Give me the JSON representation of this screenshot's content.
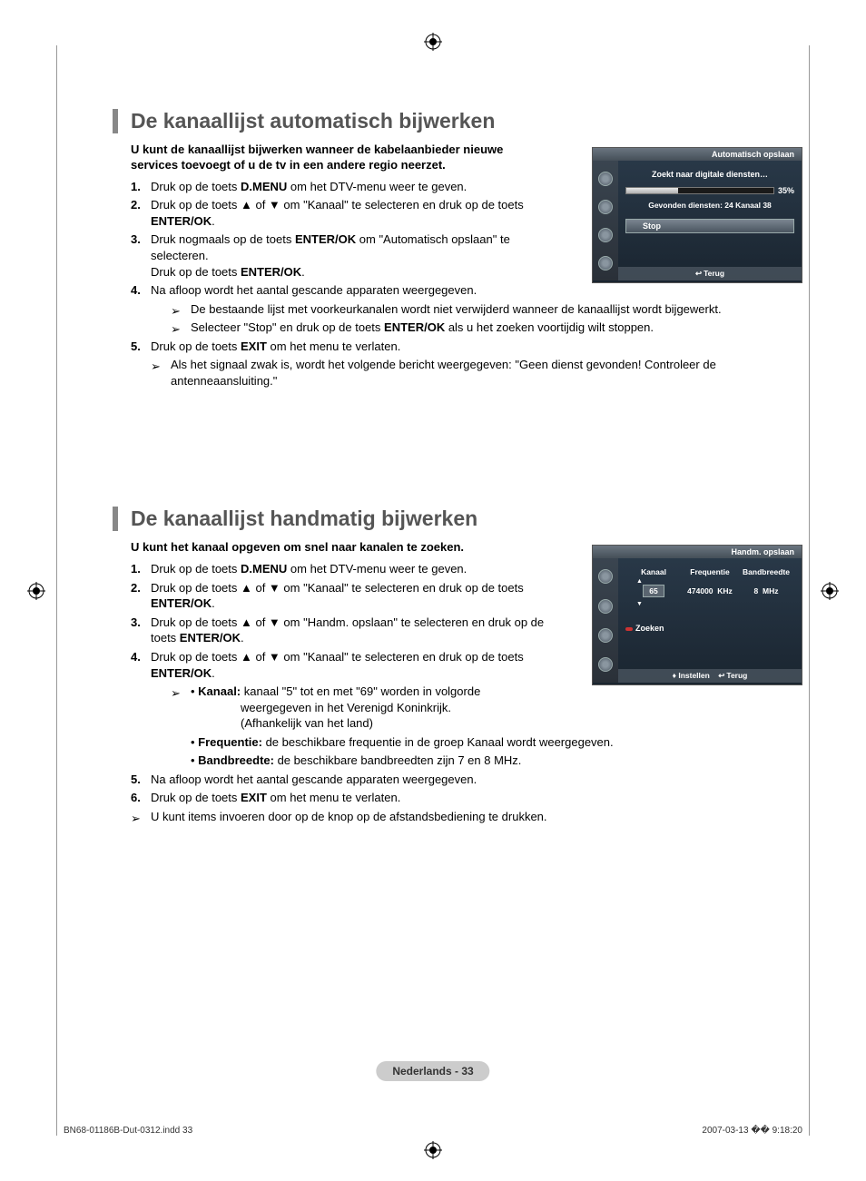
{
  "section1": {
    "title": "De kanaallijst automatisch bijwerken",
    "intro": "U kunt de kanaallijst bijwerken wanneer de kabelaanbieder nieuwe services toevoegt of u de tv in een andere regio neerzet.",
    "steps": {
      "s1_a": "Druk op de toets ",
      "s1_b": "D.MENU",
      "s1_c": " om het DTV-menu weer te geven.",
      "s2_a": "Druk op de toets ▲ of ▼ om \"Kanaal\" te selecteren en druk op de toets ",
      "s2_b": "ENTER/OK",
      "s2_c": ".",
      "s3_a": "Druk nogmaals op de toets ",
      "s3_b": "ENTER/OK",
      "s3_c": " om \"Automatisch opslaan\" te selecteren.",
      "s3_d": "Druk op de toets ",
      "s3_e": "ENTER/OK",
      "s3_f": ".",
      "s4": "Na afloop wordt het aantal gescande apparaten weergegeven.",
      "s4_note1": "De bestaande lijst met voorkeurkanalen wordt niet verwijderd wanneer de kanaallijst wordt bijgewerkt.",
      "s4_note2_a": "Selecteer \"Stop\" en druk op de toets ",
      "s4_note2_b": "ENTER/OK",
      "s4_note2_c": " als u het zoeken voortijdig wilt stoppen.",
      "s5_a": "Druk op de toets ",
      "s5_b": "EXIT",
      "s5_c": " om het menu te verlaten.",
      "s5_note": "Als het signaal zwak is, wordt het volgende bericht weergegeven: \"Geen dienst gevonden! Controleer de antenneaansluiting.\""
    }
  },
  "section2": {
    "title": "De kanaallijst handmatig bijwerken",
    "intro": "U kunt het kanaal opgeven om snel naar kanalen te zoeken.",
    "steps": {
      "s1_a": "Druk op de toets ",
      "s1_b": "D.MENU",
      "s1_c": " om het DTV-menu weer te geven.",
      "s2_a": "Druk op de toets ▲ of ▼ om \"Kanaal\" te selecteren en druk op de toets ",
      "s2_b": "ENTER/OK",
      "s2_c": ".",
      "s3_a": "Druk op de toets ▲ of ▼ om \"Handm. opslaan\" te selecteren en druk op de toets ",
      "s3_b": "ENTER/OK",
      "s3_c": ".",
      "s4_a": "Druk op de toets ▲ of ▼ om \"Kanaal\" te selecteren en druk op de toets ",
      "s4_b": "ENTER/OK",
      "s4_c": ".",
      "s4_k_label": "Kanaal:",
      "s4_k_text": " kanaal \"5\" tot en met \"69\" worden in volgorde",
      "s4_k_text2": "weergegeven in het Verenigd Koninkrijk.",
      "s4_k_text3": "(Afhankelijk van het land)",
      "s4_f_label": "Frequentie:",
      "s4_f_text": " de beschikbare frequentie in de groep Kanaal wordt weergegeven.",
      "s4_b_label": "Bandbreedte:",
      "s4_b_text": " de beschikbare bandbreedten zijn 7 en 8 MHz.",
      "s5": "Na afloop wordt het aantal gescande apparaten weergegeven.",
      "s6_a": "Druk op de toets ",
      "s6_b": "EXIT",
      "s6_c": " om het menu te verlaten.",
      "s6_note": "U kunt items invoeren door op de knop op de afstandsbediening te drukken."
    }
  },
  "osd1": {
    "header": "Automatisch opslaan",
    "searching": "Zoekt naar digitale diensten…",
    "percent": "35%",
    "found": "Gevonden diensten: 24   Kanaal 38",
    "stop": "Stop",
    "return": "Terug",
    "progress_fill_percent": 35
  },
  "osd2": {
    "header": "Handm. opslaan",
    "col1": "Kanaal",
    "col2": "Frequentie",
    "col3": "Bandbreedte",
    "channel_val": "65",
    "freq_val": "474000",
    "freq_unit": "KHz",
    "band_val": "8",
    "band_unit": "MHz",
    "search": "Zoeken",
    "adjust": "Instellen",
    "return": "Terug"
  },
  "page_marker": "Nederlands - 33",
  "footer": {
    "left": "BN68-01186B-Dut-0312.indd   33",
    "right": "2007-03-13   �� 9:18:20"
  },
  "colors": {
    "heading": "#555555",
    "accent_bar": "#888888",
    "osd_bg_top": "#2a3a4a",
    "osd_bg_bottom": "#1a2530",
    "page_marker_bg": "#cccccc"
  }
}
